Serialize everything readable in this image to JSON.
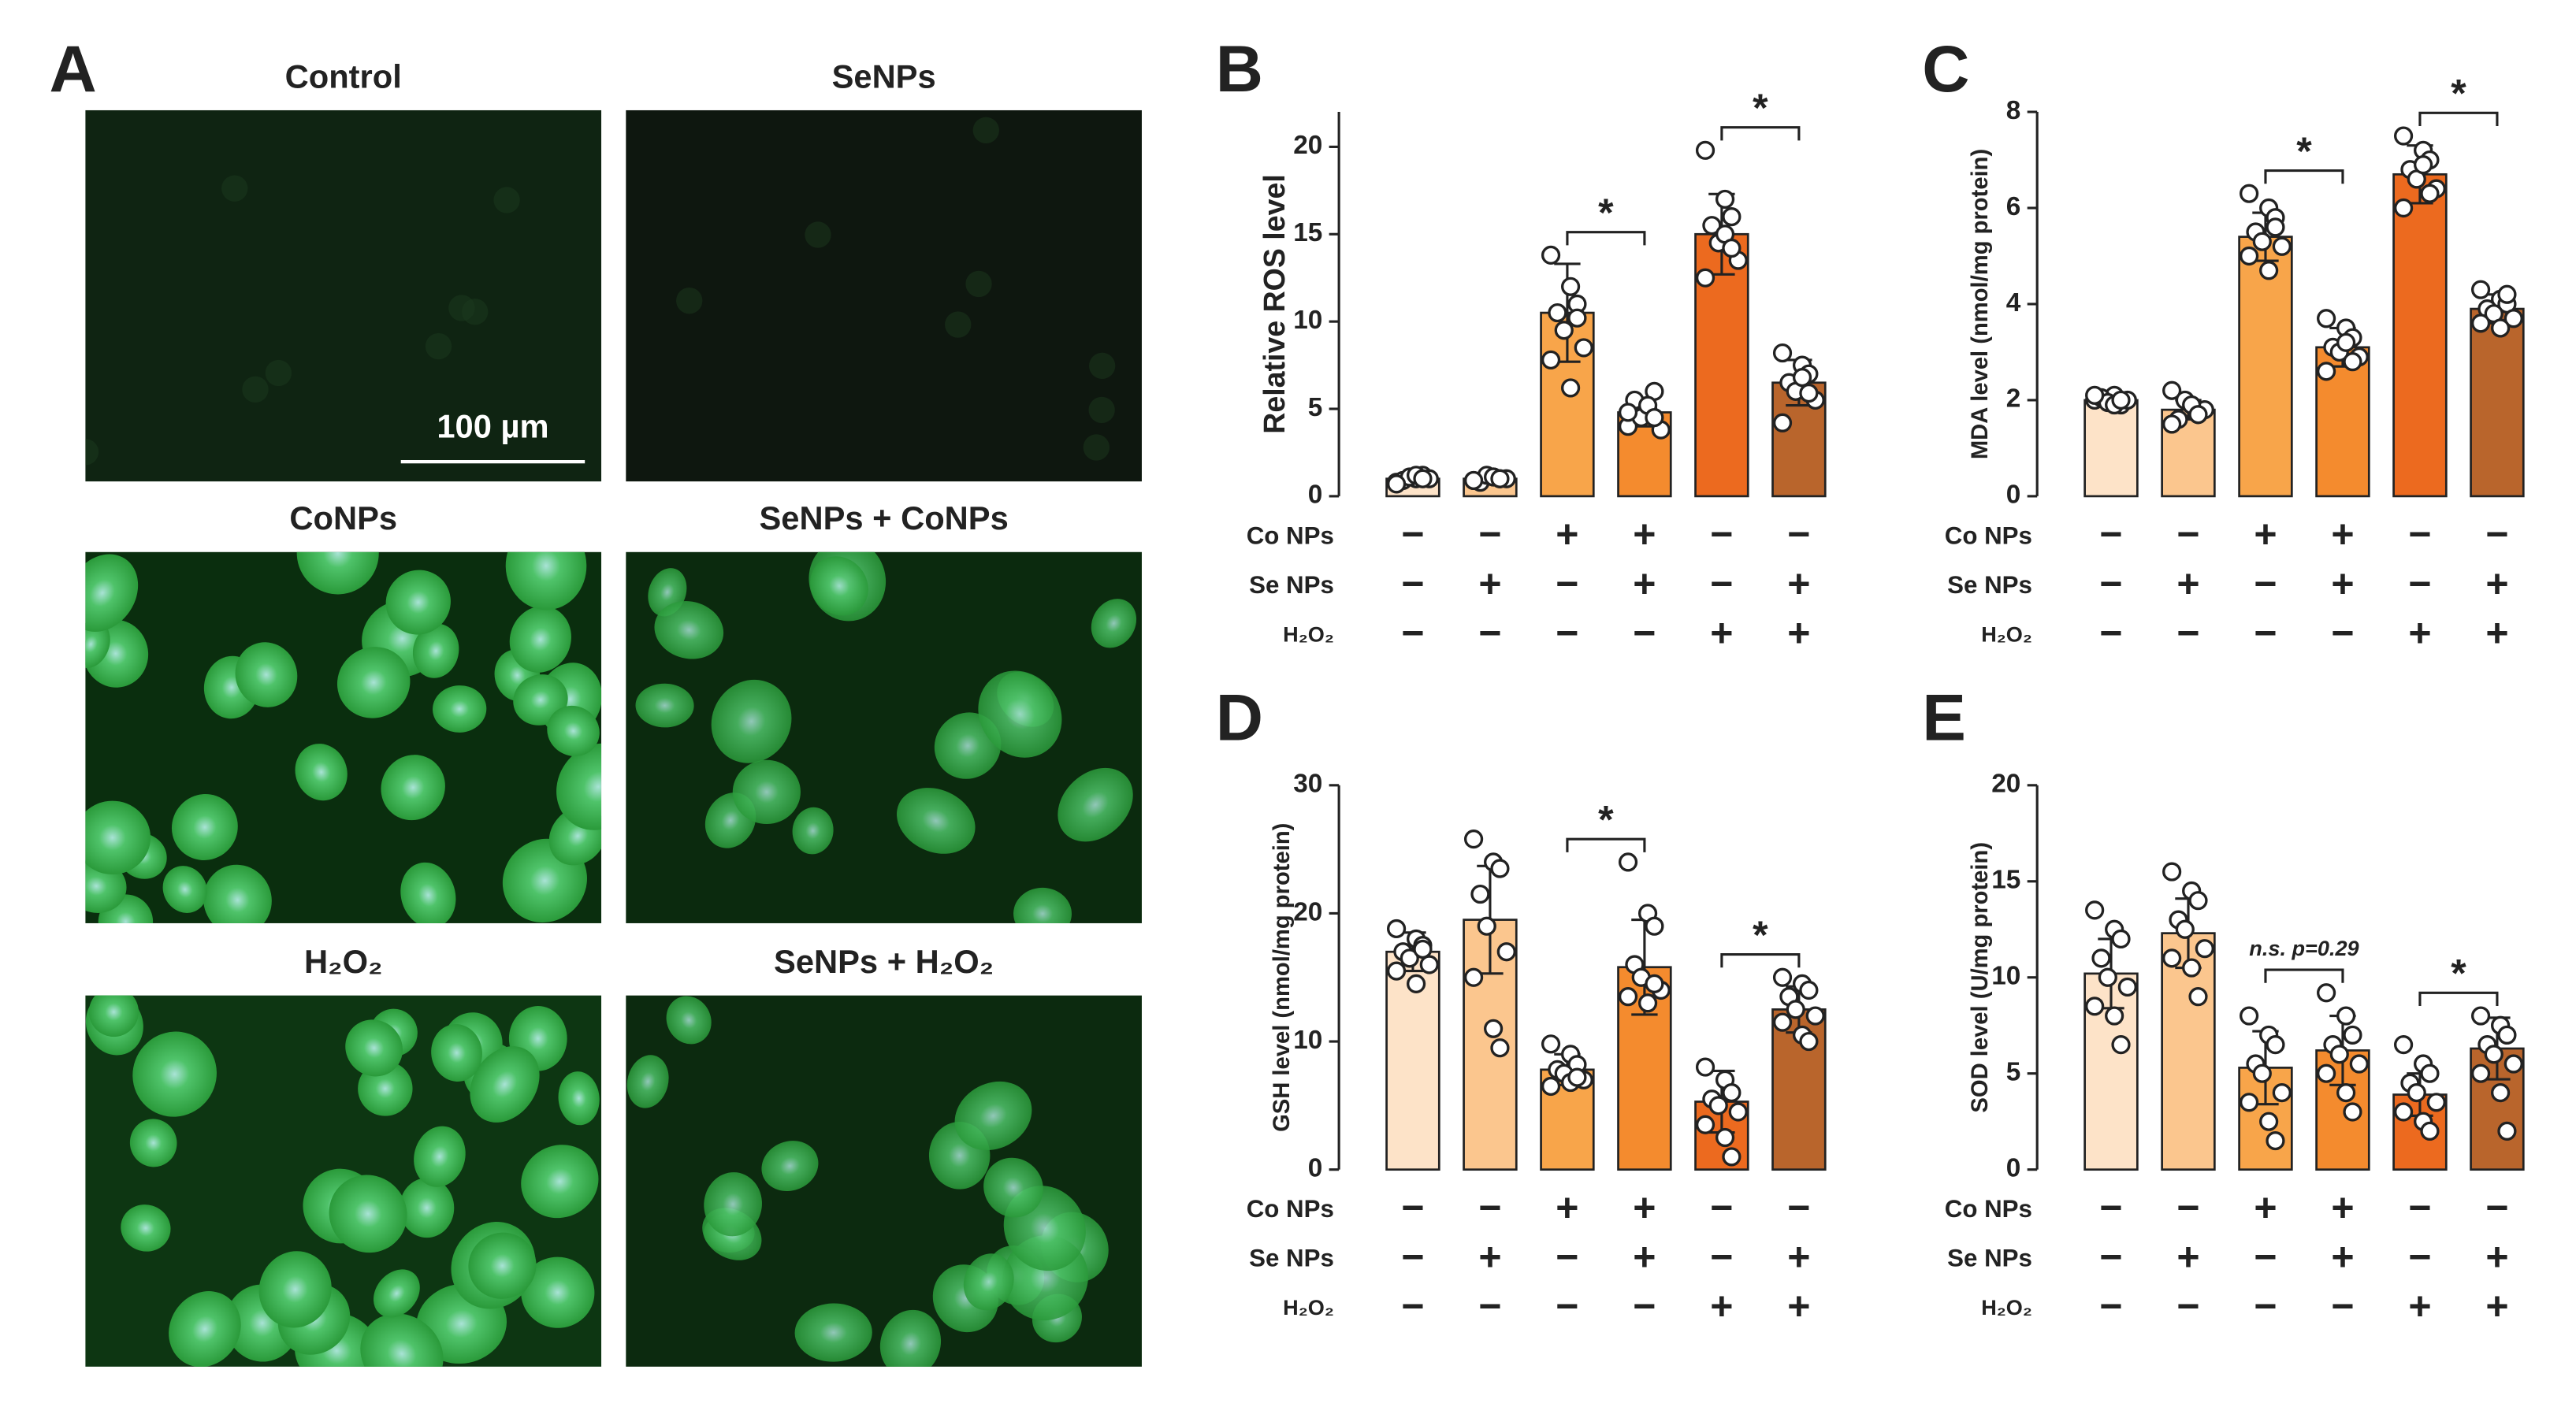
{
  "panel_a": {
    "label": "A",
    "images": [
      {
        "title": "Control"
      },
      {
        "title": "SeNPs"
      },
      {
        "title": "CoNPs"
      },
      {
        "title": "SeNPs + CoNPs"
      },
      {
        "title": "H₂O₂"
      },
      {
        "title": "SeNPs + H₂O₂"
      }
    ],
    "scale_bar": "100 µm"
  },
  "chart_data": [
    {
      "type": "bar",
      "panel": "B",
      "y_label": "Relative ROS level",
      "values": [
        1.0,
        1.0,
        10.5,
        4.8,
        15.0,
        6.5
      ],
      "errors": [
        0.2,
        0.2,
        2.8,
        0.8,
        2.3,
        1.3
      ],
      "points": [
        [
          0.8,
          1.0,
          1.2,
          0.9,
          1.1,
          1.0,
          0.7,
          1.2,
          1.0
        ],
        [
          0.9,
          1.1,
          1.0,
          0.8,
          1.2,
          1.0,
          0.9,
          1.1,
          1.0
        ],
        [
          13.8,
          12.0,
          11.0,
          10.5,
          9.5,
          8.5,
          7.8,
          6.2,
          10.2
        ],
        [
          4.0,
          5.0,
          6.0,
          5.5,
          4.5,
          3.8,
          4.8,
          5.2,
          4.5
        ],
        [
          19.8,
          17.0,
          16.0,
          15.5,
          14.5,
          13.5,
          12.5,
          15.0,
          14.2
        ],
        [
          8.2,
          7.5,
          7.0,
          6.5,
          6.0,
          5.5,
          4.2,
          6.8,
          5.9
        ]
      ],
      "colors": [
        "#fde3c8",
        "#fbc68e",
        "#f8a54a",
        "#f48b2e",
        "#ec6a1f",
        "#b9652c"
      ],
      "ylim": [
        0,
        22
      ],
      "yticks": [
        0,
        5,
        10,
        15,
        20
      ],
      "treatments": [
        {
          "name": "Co NPs",
          "signs": [
            "−",
            "−",
            "+",
            "+",
            "−",
            "−"
          ]
        },
        {
          "name": "Se NPs",
          "signs": [
            "−",
            "+",
            "−",
            "+",
            "−",
            "+"
          ]
        },
        {
          "name": "H₂O₂",
          "signs": [
            "−",
            "−",
            "−",
            "−",
            "+",
            "+"
          ]
        }
      ],
      "comparisons": [
        {
          "bars": [
            2,
            3
          ],
          "label": "*"
        },
        {
          "bars": [
            4,
            5
          ],
          "label": "*"
        }
      ]
    },
    {
      "type": "bar",
      "panel": "C",
      "y_label": "MDA level (nmol/mg protein)",
      "values": [
        2.0,
        1.8,
        5.4,
        3.1,
        6.7,
        3.9
      ],
      "errors": [
        0.1,
        0.2,
        0.5,
        0.4,
        0.6,
        0.3
      ],
      "points": [
        [
          2.0,
          2.1,
          1.9,
          2.05,
          1.95,
          2.0,
          2.1,
          1.9,
          2.0
        ],
        [
          2.2,
          1.9,
          1.7,
          1.6,
          2.0,
          1.8,
          1.5,
          1.9,
          1.7
        ],
        [
          6.3,
          6.0,
          5.8,
          5.5,
          5.3,
          5.2,
          5.0,
          4.7,
          5.6
        ],
        [
          3.7,
          3.5,
          3.3,
          3.1,
          3.0,
          2.9,
          2.6,
          3.2,
          2.8
        ],
        [
          7.5,
          7.2,
          7.0,
          6.8,
          6.6,
          6.4,
          6.0,
          6.9,
          6.3
        ],
        [
          4.3,
          4.1,
          4.0,
          3.9,
          3.8,
          3.7,
          3.6,
          3.5,
          4.2
        ]
      ],
      "colors": [
        "#fde3c8",
        "#fbc68e",
        "#f8a54a",
        "#f48b2e",
        "#ec6a1f",
        "#b9652c"
      ],
      "ylim": [
        0,
        8
      ],
      "yticks": [
        0,
        2,
        4,
        6,
        8
      ],
      "treatments": [
        {
          "name": "Co NPs",
          "signs": [
            "−",
            "−",
            "+",
            "+",
            "−",
            "−"
          ]
        },
        {
          "name": "Se NPs",
          "signs": [
            "−",
            "+",
            "−",
            "+",
            "−",
            "+"
          ]
        },
        {
          "name": "H₂O₂",
          "signs": [
            "−",
            "−",
            "−",
            "−",
            "+",
            "+"
          ]
        }
      ],
      "comparisons": [
        {
          "bars": [
            2,
            3
          ],
          "label": "*"
        },
        {
          "bars": [
            4,
            5
          ],
          "label": "*"
        }
      ]
    },
    {
      "type": "bar",
      "panel": "D",
      "y_label": "GSH level (nmol/mg protein)",
      "values": [
        17.0,
        19.5,
        7.8,
        15.8,
        5.3,
        12.5
      ],
      "errors": [
        1.5,
        4.2,
        1.2,
        3.7,
        2.4,
        1.8
      ],
      "points": [
        [
          18.8,
          18.0,
          17.5,
          17.0,
          16.5,
          16.0,
          15.5,
          14.5,
          17.2
        ],
        [
          25.8,
          24.0,
          23.5,
          21.5,
          19.0,
          17.0,
          15.0,
          11.0,
          9.5
        ],
        [
          9.8,
          9.0,
          8.2,
          7.8,
          7.5,
          7.0,
          6.5,
          6.8,
          7.2
        ],
        [
          24.0,
          20.0,
          19.0,
          16.0,
          15.0,
          14.0,
          13.5,
          13.0,
          14.5
        ],
        [
          8.0,
          7.0,
          6.0,
          5.5,
          5.0,
          4.5,
          3.5,
          2.5,
          1.0
        ],
        [
          15.0,
          14.5,
          14.0,
          13.5,
          12.5,
          12.0,
          11.5,
          10.5,
          10.0
        ]
      ],
      "colors": [
        "#fde3c8",
        "#fbc68e",
        "#f8a54a",
        "#f48b2e",
        "#ec6a1f",
        "#b9652c"
      ],
      "ylim": [
        0,
        30
      ],
      "yticks": [
        0,
        10,
        20,
        30
      ],
      "treatments": [
        {
          "name": "Co NPs",
          "signs": [
            "−",
            "−",
            "+",
            "+",
            "−",
            "−"
          ]
        },
        {
          "name": "Se NPs",
          "signs": [
            "−",
            "+",
            "−",
            "+",
            "−",
            "+"
          ]
        },
        {
          "name": "H₂O₂",
          "signs": [
            "−",
            "−",
            "−",
            "−",
            "+",
            "+"
          ]
        }
      ],
      "comparisons": [
        {
          "bars": [
            2,
            3
          ],
          "label": "*"
        },
        {
          "bars": [
            4,
            5
          ],
          "label": "*"
        }
      ]
    },
    {
      "type": "bar",
      "panel": "E",
      "y_label": "SOD level (U/mg protein)",
      "values": [
        10.2,
        12.3,
        5.3,
        6.2,
        3.9,
        6.3
      ],
      "errors": [
        1.8,
        1.8,
        1.9,
        1.8,
        1.1,
        1.6
      ],
      "points": [
        [
          13.5,
          12.5,
          12.0,
          11.0,
          10.0,
          9.5,
          8.5,
          8.0,
          6.5
        ],
        [
          15.5,
          14.5,
          14.0,
          13.0,
          12.5,
          11.5,
          11.0,
          10.5,
          9.0
        ],
        [
          8.0,
          7.0,
          6.5,
          5.5,
          5.0,
          4.0,
          3.5,
          2.5,
          1.5
        ],
        [
          9.2,
          8.0,
          7.0,
          6.5,
          6.0,
          5.5,
          5.0,
          4.0,
          3.0
        ],
        [
          6.5,
          5.5,
          5.0,
          4.5,
          4.0,
          3.5,
          3.0,
          2.5,
          2.0
        ],
        [
          8.0,
          7.5,
          7.0,
          6.5,
          6.0,
          5.5,
          5.0,
          4.0,
          2.0
        ]
      ],
      "colors": [
        "#fde3c8",
        "#fbc68e",
        "#f8a54a",
        "#f48b2e",
        "#ec6a1f",
        "#b9652c"
      ],
      "ylim": [
        0,
        20
      ],
      "yticks": [
        0,
        5,
        10,
        15,
        20
      ],
      "treatments": [
        {
          "name": "Co NPs",
          "signs": [
            "−",
            "−",
            "+",
            "+",
            "−",
            "−"
          ]
        },
        {
          "name": "Se NPs",
          "signs": [
            "−",
            "+",
            "−",
            "+",
            "−",
            "+"
          ]
        },
        {
          "name": "H₂O₂",
          "signs": [
            "−",
            "−",
            "−",
            "−",
            "+",
            "+"
          ]
        }
      ],
      "comparisons": [
        {
          "bars": [
            2,
            3
          ],
          "label": "n.s. p=0.29"
        },
        {
          "bars": [
            4,
            5
          ],
          "label": "*"
        }
      ]
    }
  ]
}
